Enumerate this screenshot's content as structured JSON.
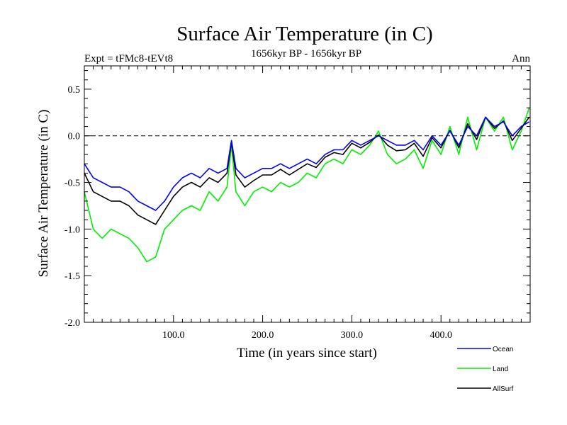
{
  "chart_data": {
    "type": "line",
    "title": "Surface Air Temperature (in C)",
    "subtitle": "1656kyr BP - 1656kyr BP",
    "header_left": "Expt = tFMc8-tEVt8",
    "header_right": "Ann",
    "xlabel": "Time (in years since start)",
    "ylabel": "Surface Air Temperature (in C)",
    "xlim": [
      0,
      500
    ],
    "ylim": [
      -2.0,
      0.75
    ],
    "x_ticks": [
      {
        "value": 100,
        "label": "100.0"
      },
      {
        "value": 200,
        "label": "200.0"
      },
      {
        "value": 300,
        "label": "300.0"
      },
      {
        "value": 400,
        "label": "400.0"
      }
    ],
    "y_ticks": [
      {
        "value": 0.5,
        "label": "0.5"
      },
      {
        "value": 0.0,
        "label": "0.0"
      },
      {
        "value": -0.5,
        "label": "-0.5"
      },
      {
        "value": -1.0,
        "label": "-1.0"
      },
      {
        "value": -1.5,
        "label": "-1.5"
      },
      {
        "value": -2.0,
        "label": "-2.0"
      }
    ],
    "reference_line": 0.0,
    "legend_position": "bottom-right",
    "series": [
      {
        "name": "Ocean",
        "color": "#0000ff",
        "x": [
          0,
          10,
          20,
          30,
          40,
          50,
          60,
          70,
          80,
          90,
          100,
          110,
          120,
          130,
          140,
          150,
          160,
          165,
          170,
          180,
          190,
          200,
          210,
          220,
          230,
          240,
          250,
          260,
          270,
          280,
          290,
          300,
          310,
          320,
          330,
          340,
          350,
          360,
          370,
          380,
          390,
          400,
          410,
          420,
          430,
          440,
          450,
          460,
          470,
          480,
          490,
          499
        ],
        "values": [
          -0.3,
          -0.45,
          -0.5,
          -0.55,
          -0.55,
          -0.6,
          -0.7,
          -0.75,
          -0.8,
          -0.7,
          -0.55,
          -0.45,
          -0.4,
          -0.45,
          -0.35,
          -0.4,
          -0.35,
          -0.05,
          -0.35,
          -0.45,
          -0.4,
          -0.35,
          -0.35,
          -0.3,
          -0.35,
          -0.3,
          -0.25,
          -0.3,
          -0.2,
          -0.15,
          -0.15,
          -0.05,
          -0.1,
          -0.05,
          0.0,
          -0.05,
          -0.1,
          -0.1,
          -0.05,
          -0.15,
          0.0,
          -0.1,
          0.05,
          -0.1,
          0.1,
          0.0,
          0.2,
          0.1,
          0.15,
          0.0,
          0.1,
          0.15
        ]
      },
      {
        "name": "Land",
        "color": "#00ee00",
        "x": [
          0,
          10,
          20,
          30,
          40,
          50,
          60,
          70,
          80,
          90,
          100,
          110,
          120,
          130,
          140,
          150,
          160,
          165,
          170,
          180,
          190,
          200,
          210,
          220,
          230,
          240,
          250,
          260,
          270,
          280,
          290,
          300,
          310,
          320,
          330,
          340,
          350,
          360,
          370,
          380,
          390,
          400,
          410,
          420,
          430,
          440,
          450,
          460,
          470,
          480,
          490,
          499
        ],
        "values": [
          -0.6,
          -1.0,
          -1.1,
          -1.0,
          -1.05,
          -1.1,
          -1.2,
          -1.35,
          -1.3,
          -1.0,
          -0.9,
          -0.8,
          -0.75,
          -0.8,
          -0.6,
          -0.7,
          -0.55,
          -0.1,
          -0.6,
          -0.75,
          -0.6,
          -0.55,
          -0.6,
          -0.5,
          -0.55,
          -0.5,
          -0.4,
          -0.45,
          -0.3,
          -0.25,
          -0.3,
          -0.15,
          -0.2,
          -0.1,
          0.05,
          -0.2,
          -0.3,
          -0.25,
          -0.15,
          -0.35,
          -0.05,
          -0.2,
          0.1,
          -0.2,
          0.2,
          -0.15,
          0.2,
          0.05,
          0.2,
          -0.15,
          0.05,
          0.3
        ]
      },
      {
        "name": "AllSurf",
        "color": "#000000",
        "x": [
          0,
          10,
          20,
          30,
          40,
          50,
          60,
          70,
          80,
          90,
          100,
          110,
          120,
          130,
          140,
          150,
          160,
          165,
          170,
          180,
          190,
          200,
          210,
          220,
          230,
          240,
          250,
          260,
          270,
          280,
          290,
          300,
          310,
          320,
          330,
          340,
          350,
          360,
          370,
          380,
          390,
          400,
          410,
          420,
          430,
          440,
          450,
          460,
          470,
          480,
          490,
          499
        ],
        "values": [
          -0.4,
          -0.6,
          -0.65,
          -0.7,
          -0.7,
          -0.75,
          -0.85,
          -0.9,
          -0.95,
          -0.8,
          -0.65,
          -0.55,
          -0.5,
          -0.55,
          -0.45,
          -0.5,
          -0.4,
          -0.07,
          -0.42,
          -0.55,
          -0.48,
          -0.42,
          -0.42,
          -0.36,
          -0.42,
          -0.36,
          -0.3,
          -0.34,
          -0.23,
          -0.18,
          -0.2,
          -0.08,
          -0.13,
          -0.07,
          0.01,
          -0.1,
          -0.16,
          -0.15,
          -0.08,
          -0.22,
          -0.02,
          -0.13,
          0.06,
          -0.13,
          0.13,
          -0.04,
          0.2,
          0.08,
          0.16,
          -0.05,
          0.08,
          0.2
        ]
      }
    ]
  }
}
